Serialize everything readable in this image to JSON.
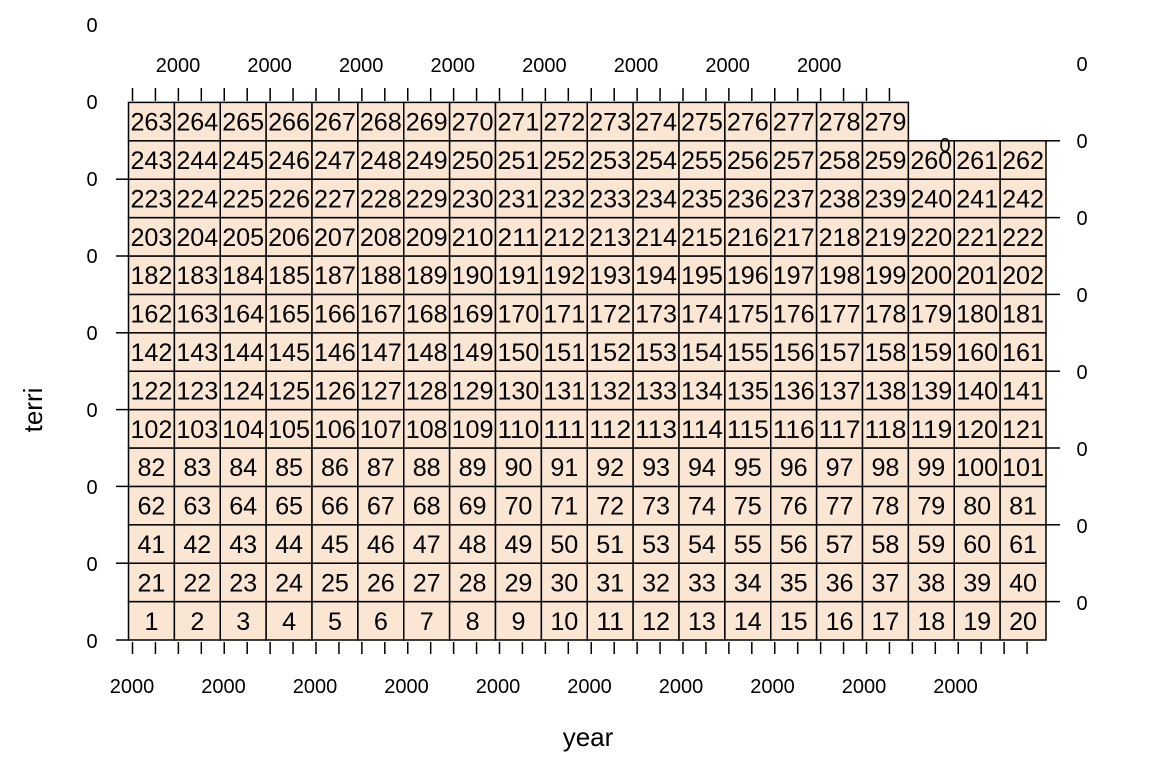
{
  "chart_data": {
    "type": "table",
    "title": "",
    "xlabel": "year",
    "ylabel": "terri",
    "rows": [
      [
        "1",
        "2",
        "3",
        "4",
        "5",
        "6",
        "7",
        "8",
        "9",
        "10",
        "11",
        "12",
        "13",
        "14",
        "15",
        "16",
        "17",
        "18",
        "19",
        "20"
      ],
      [
        "21",
        "22",
        "23",
        "24",
        "25",
        "26",
        "27",
        "28",
        "29",
        "30",
        "31",
        "32",
        "33",
        "34",
        "35",
        "36",
        "37",
        "38",
        "39",
        "40"
      ],
      [
        "41",
        "42",
        "43",
        "44",
        "45",
        "46",
        "47",
        "48",
        "49",
        "50",
        "51",
        "53",
        "54",
        "55",
        "56",
        "57",
        "58",
        "59",
        "60",
        "61"
      ],
      [
        "62",
        "63",
        "64",
        "65",
        "66",
        "67",
        "68",
        "69",
        "70",
        "71",
        "72",
        "73",
        "74",
        "75",
        "76",
        "77",
        "78",
        "79",
        "80",
        "81"
      ],
      [
        "82",
        "83",
        "84",
        "85",
        "86",
        "87",
        "88",
        "89",
        "90",
        "91",
        "92",
        "93",
        "94",
        "95",
        "96",
        "97",
        "98",
        "99",
        "100",
        "101"
      ],
      [
        "102",
        "103",
        "104",
        "105",
        "106",
        "107",
        "108",
        "109",
        "110",
        "111",
        "112",
        "113",
        "114",
        "115",
        "116",
        "117",
        "118",
        "119",
        "120",
        "121"
      ],
      [
        "122",
        "123",
        "124",
        "125",
        "126",
        "127",
        "128",
        "129",
        "130",
        "131",
        "132",
        "133",
        "134",
        "135",
        "136",
        "137",
        "138",
        "139",
        "140",
        "141"
      ],
      [
        "142",
        "143",
        "144",
        "145",
        "146",
        "147",
        "148",
        "149",
        "150",
        "151",
        "152",
        "153",
        "154",
        "155",
        "156",
        "157",
        "158",
        "159",
        "160",
        "161"
      ],
      [
        "162",
        "163",
        "164",
        "165",
        "166",
        "167",
        "168",
        "169",
        "170",
        "171",
        "172",
        "173",
        "174",
        "175",
        "176",
        "177",
        "178",
        "179",
        "180",
        "181"
      ],
      [
        "182",
        "183",
        "184",
        "185",
        "187",
        "188",
        "189",
        "190",
        "191",
        "192",
        "193",
        "194",
        "195",
        "196",
        "197",
        "198",
        "199",
        "200",
        "201",
        "202"
      ],
      [
        "203",
        "204",
        "205",
        "206",
        "207",
        "208",
        "209",
        "210",
        "211",
        "212",
        "213",
        "214",
        "215",
        "216",
        "217",
        "218",
        "219",
        "220",
        "221",
        "222"
      ],
      [
        "223",
        "224",
        "225",
        "226",
        "227",
        "228",
        "229",
        "230",
        "231",
        "232",
        "233",
        "234",
        "235",
        "236",
        "237",
        "238",
        "239",
        "240",
        "241",
        "242"
      ],
      [
        "243",
        "244",
        "245",
        "246",
        "247",
        "248",
        "249",
        "250",
        "251",
        "252",
        "253",
        "254",
        "255",
        "256",
        "257",
        "258",
        "259",
        "260",
        "261",
        "262"
      ],
      [
        "263",
        "264",
        "265",
        "266",
        "267",
        "268",
        "269",
        "270",
        "271",
        "272",
        "273",
        "274",
        "275",
        "276",
        "277",
        "278",
        "279"
      ]
    ],
    "x_ticks_bottom": [
      "2000",
      "2000",
      "2000",
      "2000",
      "2000",
      "2000",
      "2000",
      "2000",
      "2000",
      "2000"
    ],
    "x_ticks_top": [
      "2000",
      "2000",
      "2000",
      "2000",
      "2000",
      "2000",
      "2000",
      "2000"
    ],
    "y_ticks_left": [
      "0",
      "0",
      "0",
      "0",
      "0",
      "0",
      "0",
      "0",
      "0"
    ],
    "y_ticks_right": [
      "0",
      "0",
      "0",
      "0",
      "0",
      "0",
      "0",
      "0"
    ],
    "stray_label": "0",
    "colors": {
      "cell_fill": "#fbe6d4",
      "border": "#000000"
    }
  }
}
